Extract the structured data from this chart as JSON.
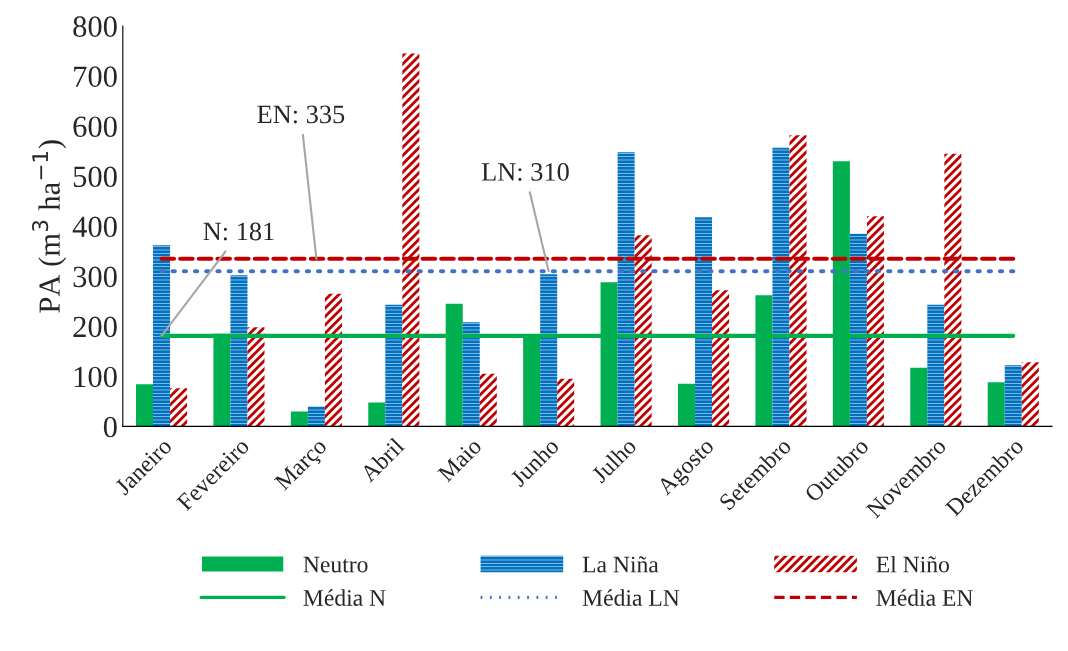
{
  "chart_data": {
    "type": "bar",
    "ylabel": "PA (m$^{3}$ ha$^{−1}$)",
    "categories": [
      "Janeiro",
      "Fevereiro",
      "Março",
      "Abril",
      "Maio",
      "Junho",
      "Julho",
      "Agosto",
      "Setembro",
      "Outubro",
      "Novembro",
      "Dezembro"
    ],
    "series": [
      {
        "name": "Neutro",
        "color": "#00b050",
        "values": [
          84,
          185,
          30,
          48,
          245,
          178,
          288,
          85,
          262,
          530,
          117,
          88
        ]
      },
      {
        "name": "La Niña",
        "color": "#0070c0",
        "values": [
          362,
          302,
          40,
          243,
          208,
          304,
          548,
          418,
          557,
          385,
          243,
          122
        ]
      },
      {
        "name": "El Niño",
        "color": "#c00000",
        "values": [
          76,
          198,
          265,
          745,
          105,
          95,
          382,
          272,
          582,
          420,
          545,
          128
        ]
      },
      {
        "name": "Média N",
        "type": "line",
        "line_style": "solid",
        "color": "#00b050",
        "values": [
          181,
          181,
          181,
          181,
          181,
          181,
          181,
          181,
          181,
          181,
          181,
          181
        ]
      },
      {
        "name": "Média LN",
        "type": "line",
        "line_style": "dotted",
        "color": "#4472c4",
        "values": [
          310,
          310,
          310,
          310,
          310,
          310,
          310,
          310,
          310,
          310,
          310,
          310
        ]
      },
      {
        "name": "Média EN",
        "type": "line",
        "line_style": "dashed",
        "color": "#c00000",
        "values": [
          335,
          335,
          335,
          335,
          335,
          335,
          335,
          335,
          335,
          335,
          335,
          335
        ]
      }
    ],
    "annotations": [
      {
        "text": "N: 181",
        "x": "Janeiro",
        "y": 181
      },
      {
        "text": "EN: 335",
        "x": "Março",
        "y": 335
      },
      {
        "text": "LN: 310",
        "x": "Junho",
        "y": 310
      }
    ],
    "ylim": [
      0,
      800
    ],
    "yticks": [
      0,
      100,
      200,
      300,
      400,
      500,
      600,
      700,
      800
    ],
    "grid": false,
    "legend": "bottom"
  }
}
